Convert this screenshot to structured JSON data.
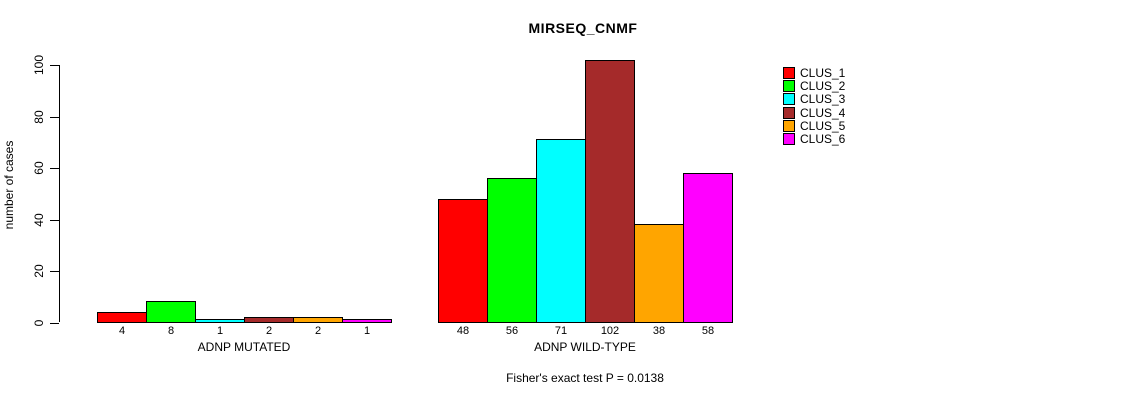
{
  "chart_data": {
    "type": "bar",
    "title": "MIRSEQ_CNMF",
    "ylabel": "number of cases",
    "xlabel": "",
    "ylim": [
      0,
      100
    ],
    "yticks": [
      0,
      20,
      40,
      60,
      80,
      100
    ],
    "grid": false,
    "legend_position": "right",
    "bar_value_labels_shown": true,
    "categories": [
      "ADNP MUTATED",
      "ADNP WILD-TYPE"
    ],
    "series": [
      {
        "name": "CLUS_1",
        "color": "#FF0000",
        "values": [
          4,
          48
        ]
      },
      {
        "name": "CLUS_2",
        "color": "#00FF00",
        "values": [
          8,
          56
        ]
      },
      {
        "name": "CLUS_3",
        "color": "#00FFFF",
        "values": [
          1,
          71
        ]
      },
      {
        "name": "CLUS_4",
        "color": "#A52A2A",
        "values": [
          2,
          102
        ]
      },
      {
        "name": "CLUS_5",
        "color": "#FFA500",
        "values": [
          2,
          38
        ]
      },
      {
        "name": "CLUS_6",
        "color": "#FF00FF",
        "values": [
          1,
          58
        ]
      }
    ],
    "annotation": "Fisher's exact test P = 0.0138"
  },
  "legend": {
    "items": [
      {
        "label": "CLUS_1",
        "color": "#FF0000"
      },
      {
        "label": "CLUS_2",
        "color": "#00FF00"
      },
      {
        "label": "CLUS_3",
        "color": "#00FFFF"
      },
      {
        "label": "CLUS_4",
        "color": "#A52A2A"
      },
      {
        "label": "CLUS_5",
        "color": "#FFA500"
      },
      {
        "label": "CLUS_6",
        "color": "#FF00FF"
      }
    ]
  }
}
